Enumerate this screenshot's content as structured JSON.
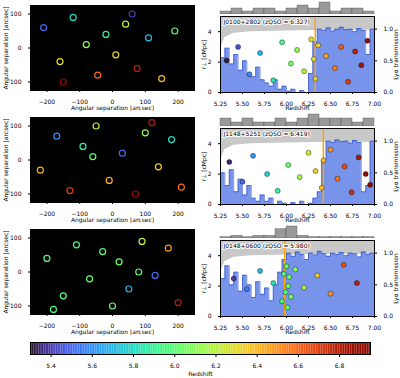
{
  "chart_data": [
    {
      "type": "scatter",
      "marker": "circle",
      "xlabel": "Angular separation [arcsec]",
      "ylabel": "Angular separation [arcsec]",
      "xlim": [
        -250,
        250
      ],
      "xticks": [
        -200,
        -100,
        0,
        100,
        200
      ],
      "ylim": [
        -125,
        125
      ],
      "yticks": [
        -100,
        0,
        100
      ],
      "x": [
        -210,
        -160,
        -120,
        -80,
        -45,
        -20,
        10,
        40,
        75,
        110,
        150,
        190,
        -150,
        60
      ],
      "y": [
        60,
        -40,
        90,
        10,
        -80,
        40,
        -20,
        70,
        -60,
        30,
        -90,
        50,
        -100,
        100
      ],
      "z": [
        5.5,
        6.3,
        5.8,
        6.1,
        6.6,
        5.9,
        6.32,
        6.2,
        6.8,
        5.7,
        6.4,
        6.0,
        6.9,
        5.4
      ]
    },
    {
      "type": "spectrum",
      "label": "J0100+2802 (zQSO = 6.327)",
      "z_qso": 6.327,
      "xlabel": "Redshift",
      "ylabel": "r⊥ [cMpc]",
      "y2label": "Lyα transmission",
      "xlim": [
        5.25,
        7.0
      ],
      "xticks": [
        5.25,
        {
          "value": 5.5,
          "label": "5.50"
        },
        5.75,
        {
          "value": 6,
          "label": "6.00"
        },
        6.25,
        {
          "value": 6.5,
          "label": "6.50"
        },
        6.75,
        {
          "value": 7,
          "label": "7.00"
        }
      ],
      "ylim": [
        0,
        5
      ],
      "yticks": [
        0,
        2,
        4
      ],
      "y2lim": [
        0,
        1.2
      ],
      "y2ticks": [
        {
          "value": 0,
          "label": "0.0"
        },
        0.5,
        {
          "value": 1,
          "label": "1.0"
        }
      ],
      "transmission": {
        "x": [
          5.25,
          5.3,
          5.35,
          5.4,
          5.45,
          5.5,
          5.55,
          5.6,
          5.65,
          5.7,
          5.75,
          5.8,
          5.85,
          5.9,
          5.95,
          6.0,
          6.05,
          6.1,
          6.15,
          6.2,
          6.25,
          6.3,
          6.35,
          6.4,
          6.45,
          6.5,
          6.55,
          6.6,
          6.65,
          6.7,
          6.75,
          6.8,
          6.85,
          6.9,
          6.95,
          7.0
        ],
        "values": [
          0.55,
          0.7,
          0.45,
          0.6,
          0.35,
          0.5,
          0.3,
          0.25,
          0.4,
          0.2,
          0.15,
          0.1,
          0.2,
          0.05,
          0.1,
          0.02,
          0.05,
          0,
          0.03,
          0,
          0.3,
          0.8,
          1.0,
          0.98,
          1.02,
          0.97,
          1.0,
          1.03,
          0.99,
          1.0,
          0.96,
          1.01,
          0.98,
          0.6,
          1.0,
          0.99
        ]
      },
      "boundary": {
        "x": [
          5.25,
          5.3,
          5.4,
          5.6,
          6.0,
          6.5,
          7.0
        ],
        "values": [
          2.9,
          3.6,
          3.9,
          4.0,
          4.05,
          4.1,
          4.1
        ]
      },
      "galaxies": {
        "z": [
          5.32,
          5.45,
          5.58,
          5.7,
          5.85,
          5.95,
          6.05,
          6.12,
          6.2,
          6.28,
          6.31,
          6.33,
          6.36,
          6.45,
          6.55,
          6.62,
          6.7,
          6.78,
          6.85,
          6.92
        ],
        "r_perp": [
          2.1,
          3.0,
          1.2,
          2.6,
          0.8,
          3.3,
          1.9,
          2.8,
          1.4,
          3.5,
          2.2,
          0.9,
          3.1,
          2.4,
          1.6,
          3.0,
          0.7,
          2.7,
          1.8,
          3.4
        ]
      },
      "histogram": {
        "bins": [
          5.25,
          5.375,
          5.5,
          5.625,
          5.75,
          5.875,
          6.0,
          6.125,
          6.25,
          6.375,
          6.5,
          6.625,
          6.75,
          6.875,
          7.0
        ],
        "counts": [
          1,
          2,
          1,
          2,
          2,
          1,
          2,
          3,
          2,
          4,
          1,
          2,
          2,
          1
        ]
      }
    },
    {
      "type": "scatter",
      "marker": "circle",
      "xlabel": "Angular separation [arcsec]",
      "ylabel": "Angular separation [arcsec]",
      "xlim": [
        -250,
        250
      ],
      "xticks": [
        -200,
        -100,
        0,
        100,
        200
      ],
      "ylim": [
        -125,
        125
      ],
      "yticks": [
        -100,
        0,
        100
      ],
      "x": [
        -220,
        -170,
        -130,
        -90,
        -50,
        -10,
        30,
        70,
        100,
        140,
        180,
        210,
        -60,
        120
      ],
      "y": [
        -30,
        70,
        -90,
        40,
        100,
        -60,
        20,
        -100,
        80,
        -20,
        60,
        -80,
        10,
        110
      ],
      "z": [
        6.42,
        5.6,
        6.7,
        5.9,
        6.2,
        6.45,
        5.5,
        6.9,
        6.1,
        6.35,
        5.8,
        6.6,
        6.0,
        6.8
      ]
    },
    {
      "type": "spectrum",
      "label": "J1148+5251 (zQSO = 6.419)",
      "z_qso": 6.419,
      "xlabel": "Redshift",
      "ylabel": "r⊥ [cMpc]",
      "y2label": "Lyα transmission",
      "xlim": [
        5.25,
        7.0
      ],
      "xticks": [
        5.25,
        {
          "value": 5.5,
          "label": "5.50"
        },
        5.75,
        {
          "value": 6,
          "label": "6.00"
        },
        6.25,
        {
          "value": 6.5,
          "label": "6.50"
        },
        6.75,
        {
          "value": 7,
          "label": "7.00"
        }
      ],
      "ylim": [
        0,
        5
      ],
      "yticks": [
        0,
        2,
        4
      ],
      "y2lim": [
        0,
        1.2
      ],
      "y2ticks": [
        {
          "value": 0,
          "label": "0.0"
        },
        0.5,
        {
          "value": 1,
          "label": "1.0"
        }
      ],
      "transmission": {
        "x": [
          5.25,
          5.3,
          5.35,
          5.4,
          5.45,
          5.5,
          5.55,
          5.6,
          5.65,
          5.7,
          5.75,
          5.8,
          5.85,
          5.9,
          5.95,
          6.0,
          6.05,
          6.1,
          6.15,
          6.2,
          6.25,
          6.3,
          6.35,
          6.4,
          6.45,
          6.5,
          6.55,
          6.6,
          6.65,
          6.7,
          6.75,
          6.8,
          6.85,
          6.9,
          6.95,
          7.0
        ],
        "values": [
          0.5,
          0.3,
          0.55,
          0.2,
          0.4,
          0.15,
          0.3,
          0.1,
          0.05,
          0.15,
          0.05,
          0.1,
          0,
          0.05,
          0.02,
          0,
          0.03,
          0,
          0.05,
          0,
          0.02,
          0.1,
          0.2,
          0.7,
          1.0,
          0.98,
          1.02,
          0.99,
          1.0,
          0.97,
          1.01,
          0.98,
          0.2,
          0.3,
          1.0,
          0.99
        ]
      },
      "boundary": {
        "x": [
          5.25,
          5.3,
          5.4,
          5.6,
          6.0,
          6.5,
          7.0
        ],
        "values": [
          2.9,
          3.6,
          3.9,
          4.0,
          4.05,
          4.1,
          4.1
        ]
      },
      "galaxies": {
        "z": [
          5.35,
          5.5,
          5.62,
          5.78,
          5.9,
          6.02,
          6.15,
          6.25,
          6.33,
          6.4,
          6.42,
          6.5,
          6.58,
          6.66,
          6.74,
          6.82,
          6.9,
          6.95
        ],
        "r_perp": [
          2.8,
          1.5,
          3.2,
          2.0,
          0.9,
          2.6,
          1.8,
          3.4,
          2.2,
          1.1,
          2.9,
          3.6,
          1.7,
          2.5,
          0.8,
          3.1,
          2.0,
          1.3
        ]
      },
      "histogram": {
        "bins": [
          5.25,
          5.375,
          5.5,
          5.625,
          5.75,
          5.875,
          6.0,
          6.125,
          6.25,
          6.375,
          6.5,
          6.625,
          6.75,
          6.875,
          7.0
        ],
        "counts": [
          2,
          1,
          2,
          1,
          1,
          2,
          1,
          2,
          3,
          2,
          2,
          2,
          1,
          2
        ]
      }
    },
    {
      "type": "scatter",
      "marker": "circle",
      "xlabel": "Angular separation [arcsec]",
      "ylabel": "Angular separation [arcsec]",
      "xlim": [
        -250,
        250
      ],
      "xticks": [
        -200,
        -100,
        0,
        100,
        200
      ],
      "ylim": [
        -125,
        125
      ],
      "yticks": [
        -100,
        0,
        100
      ],
      "x": [
        -200,
        -150,
        -110,
        -70,
        -30,
        0,
        20,
        50,
        90,
        130,
        170,
        200,
        -180,
        80
      ],
      "y": [
        40,
        -70,
        80,
        -20,
        60,
        -100,
        30,
        -50,
        90,
        -10,
        70,
        -90,
        -110,
        0
      ],
      "z": [
        5.98,
        6.0,
        5.95,
        6.02,
        5.99,
        6.01,
        6.03,
        5.7,
        6.2,
        5.5,
        6.5,
        6.8,
        5.97,
        6.0
      ]
    },
    {
      "type": "spectrum",
      "label": "J0148+0600 (zQSO = 5.980)",
      "z_qso": 5.98,
      "xlabel": "Redshift",
      "ylabel": "r⊥ [cMpc]",
      "y2label": "Lyα transmission",
      "xlim": [
        5.25,
        7.0
      ],
      "xticks": [
        5.25,
        {
          "value": 5.5,
          "label": "5.50"
        },
        5.75,
        {
          "value": 6,
          "label": "6.00"
        },
        6.25,
        {
          "value": 6.5,
          "label": "6.50"
        },
        6.75,
        {
          "value": 7,
          "label": "7.00"
        }
      ],
      "ylim": [
        0,
        5
      ],
      "yticks": [
        0,
        2,
        4
      ],
      "y2lim": [
        0,
        1.2
      ],
      "y2ticks": [
        {
          "value": 0,
          "label": "0.0"
        },
        0.5,
        {
          "value": 1,
          "label": "1.0"
        }
      ],
      "transmission": {
        "x": [
          5.25,
          5.3,
          5.35,
          5.4,
          5.45,
          5.5,
          5.55,
          5.6,
          5.65,
          5.7,
          5.75,
          5.8,
          5.85,
          5.9,
          5.95,
          6.0,
          6.05,
          6.1,
          6.15,
          6.2,
          6.25,
          6.3,
          6.35,
          6.4,
          6.45,
          6.5,
          6.55,
          6.6,
          6.65,
          6.7,
          6.75,
          6.8,
          6.85,
          6.9,
          6.95,
          7.0
        ],
        "values": [
          0.6,
          0.8,
          0.5,
          0.7,
          0.4,
          0.65,
          0.5,
          0.3,
          0.55,
          0.35,
          0.45,
          0.25,
          0.5,
          0.7,
          0.9,
          1.0,
          0.95,
          1.02,
          0.98,
          0.9,
          1.0,
          0.97,
          1.03,
          0.99,
          0.95,
          1.0,
          0.98,
          1.01,
          0.96,
          1.0,
          0.99,
          0.94,
          1.02,
          0.98,
          1.0,
          0.97
        ]
      },
      "boundary": {
        "x": [
          5.25,
          5.3,
          5.4,
          5.6,
          6.0,
          6.5,
          7.0
        ],
        "values": [
          2.9,
          3.6,
          3.9,
          4.0,
          4.05,
          4.1,
          4.1
        ]
      },
      "galaxies": {
        "z": [
          5.4,
          5.55,
          5.7,
          5.85,
          5.95,
          5.97,
          5.99,
          6.0,
          6.01,
          6.02,
          6.03,
          6.05,
          6.1,
          6.2,
          6.35,
          6.5,
          6.65,
          6.8
        ],
        "r_perp": [
          2.5,
          1.8,
          3.0,
          2.2,
          1.0,
          2.8,
          1.6,
          3.3,
          0.6,
          2.0,
          2.6,
          1.3,
          3.1,
          1.9,
          2.7,
          1.5,
          3.4,
          2.2
        ]
      },
      "histogram": {
        "bins": [
          5.25,
          5.375,
          5.5,
          5.625,
          5.75,
          5.875,
          6.0,
          6.125,
          6.25,
          6.375,
          6.5,
          6.625,
          6.75,
          6.875,
          7.0
        ],
        "counts": [
          1,
          2,
          1,
          2,
          2,
          7,
          9,
          2,
          1,
          1,
          1,
          1,
          1,
          1
        ]
      }
    },
    {
      "type": "colorbar",
      "label": "Redshift",
      "lim": [
        5.3,
        6.95
      ],
      "ticks": [
        5.4,
        5.6,
        5.8,
        {
          "value": 6,
          "label": "6.0"
        },
        6.2,
        6.4,
        6.6,
        6.8
      ]
    }
  ]
}
